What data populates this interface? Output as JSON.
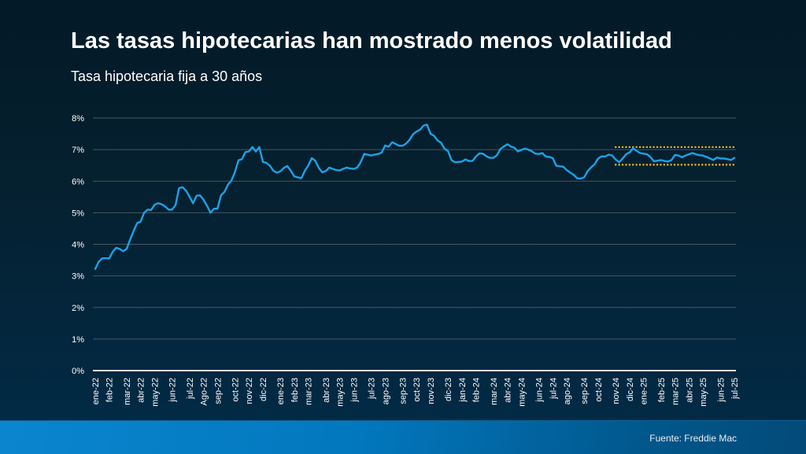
{
  "header": {
    "title": "Las tasas hipotecarias han mostrado menos volatilidad",
    "subtitle": "Tasa hipotecaria fija a 30 años"
  },
  "footer": {
    "source": "Fuente: Freddie Mac"
  },
  "colors": {
    "line": "#1aa3e8",
    "grid": "#4a5560",
    "axis": "#d9dde0",
    "band": "#e6b82a",
    "tick_text": "#ffffff"
  },
  "chart_data": {
    "type": "line",
    "title": "Las tasas hipotecarias han mostrado menos volatilidad",
    "subtitle": "Tasa hipotecaria fija a 30 años",
    "xlabel": "",
    "ylabel": "",
    "ylim": [
      0,
      8
    ],
    "yticks": [
      "0%",
      "1%",
      "2%",
      "3%",
      "4%",
      "5%",
      "6%",
      "7%",
      "8%"
    ],
    "grid": true,
    "legend": "none",
    "xticks": [
      {
        "label": "ene-22",
        "index": 0
      },
      {
        "label": "feb-22",
        "index": 4
      },
      {
        "label": "mar-22",
        "index": 9
      },
      {
        "label": "abr-22",
        "index": 13
      },
      {
        "label": "may-22",
        "index": 17
      },
      {
        "label": "jun-22",
        "index": 22
      },
      {
        "label": "jul-22",
        "index": 27
      },
      {
        "label": "Ago-22",
        "index": 31
      },
      {
        "label": "sep-22",
        "index": 35
      },
      {
        "label": "oct-22",
        "index": 40
      },
      {
        "label": "nov-22",
        "index": 44
      },
      {
        "label": "dic-22",
        "index": 48
      },
      {
        "label": "ene-23",
        "index": 53
      },
      {
        "label": "feb-23",
        "index": 57
      },
      {
        "label": "mar-23",
        "index": 61
      },
      {
        "label": "abr-23",
        "index": 66
      },
      {
        "label": "may-23",
        "index": 70
      },
      {
        "label": "jun-23",
        "index": 74
      },
      {
        "label": "jul-23",
        "index": 79
      },
      {
        "label": "ago-23",
        "index": 83
      },
      {
        "label": "sep-23",
        "index": 88
      },
      {
        "label": "oct-23",
        "index": 92
      },
      {
        "label": "nov-23",
        "index": 96
      },
      {
        "label": "dic-23",
        "index": 101
      },
      {
        "label": "jan-24",
        "index": 105
      },
      {
        "label": "feb-24",
        "index": 109
      },
      {
        "label": "mar-24",
        "index": 114
      },
      {
        "label": "abr-24",
        "index": 118
      },
      {
        "label": "may-24",
        "index": 122
      },
      {
        "label": "jun-24",
        "index": 127
      },
      {
        "label": "jul-24",
        "index": 131
      },
      {
        "label": "ago-24",
        "index": 135
      },
      {
        "label": "sep-24",
        "index": 140
      },
      {
        "label": "oct-24",
        "index": 144
      },
      {
        "label": "nov-24",
        "index": 149
      },
      {
        "label": "dic-24",
        "index": 153
      },
      {
        "label": "ene-25",
        "index": 157
      },
      {
        "label": "feb-25",
        "index": 162
      },
      {
        "label": "mar-25",
        "index": 166
      },
      {
        "label": "abr-25",
        "index": 170
      },
      {
        "label": "may-25",
        "index": 174
      },
      {
        "label": "jun-25",
        "index": 179
      },
      {
        "label": "jul-25",
        "index": 183
      }
    ],
    "series": [
      {
        "name": "Tasa hipotecaria fija a 30 años",
        "values": [
          3.22,
          3.45,
          3.56,
          3.56,
          3.55,
          3.76,
          3.89,
          3.85,
          3.78,
          3.85,
          4.16,
          4.42,
          4.67,
          4.72,
          5.0,
          5.1,
          5.09,
          5.25,
          5.3,
          5.27,
          5.2,
          5.1,
          5.1,
          5.25,
          5.78,
          5.81,
          5.7,
          5.51,
          5.3,
          5.54,
          5.55,
          5.41,
          5.22,
          5.0,
          5.13,
          5.13,
          5.55,
          5.66,
          5.89,
          6.02,
          6.29,
          6.66,
          6.7,
          6.92,
          6.94,
          7.08,
          6.94,
          7.08,
          6.61,
          6.58,
          6.49,
          6.33,
          6.27,
          6.31,
          6.42,
          6.48,
          6.33,
          6.15,
          6.12,
          6.09,
          6.32,
          6.5,
          6.73,
          6.65,
          6.42,
          6.28,
          6.32,
          6.43,
          6.39,
          6.35,
          6.34,
          6.39,
          6.43,
          6.4,
          6.39,
          6.43,
          6.6,
          6.86,
          6.84,
          6.81,
          6.84,
          6.86,
          6.9,
          7.13,
          7.09,
          7.23,
          7.18,
          7.12,
          7.12,
          7.19,
          7.31,
          7.49,
          7.57,
          7.63,
          7.76,
          7.79,
          7.5,
          7.44,
          7.29,
          7.22,
          7.03,
          6.95,
          6.67,
          6.6,
          6.61,
          6.62,
          6.69,
          6.64,
          6.64,
          6.78,
          6.88,
          6.87,
          6.79,
          6.74,
          6.74,
          6.82,
          7.02,
          7.1,
          7.17,
          7.1,
          7.06,
          6.94,
          6.99,
          7.03,
          7.0,
          6.95,
          6.87,
          6.86,
          6.89,
          6.78,
          6.77,
          6.73,
          6.49,
          6.47,
          6.46,
          6.35,
          6.27,
          6.2,
          6.09,
          6.08,
          6.12,
          6.32,
          6.44,
          6.54,
          6.72,
          6.79,
          6.78,
          6.84,
          6.81,
          6.69,
          6.6,
          6.72,
          6.85,
          6.91,
          7.04,
          6.96,
          6.89,
          6.87,
          6.85,
          6.76,
          6.63,
          6.65,
          6.67,
          6.64,
          6.62,
          6.67,
          6.83,
          6.81,
          6.76,
          6.81,
          6.85,
          6.89,
          6.85,
          6.82,
          6.81,
          6.77,
          6.72,
          6.67,
          6.75,
          6.72,
          6.72,
          6.7,
          6.67,
          6.74
        ]
      }
    ],
    "reference_band": {
      "upper": 7.08,
      "lower": 6.52,
      "start_index": 149,
      "end_index": 187
    }
  }
}
